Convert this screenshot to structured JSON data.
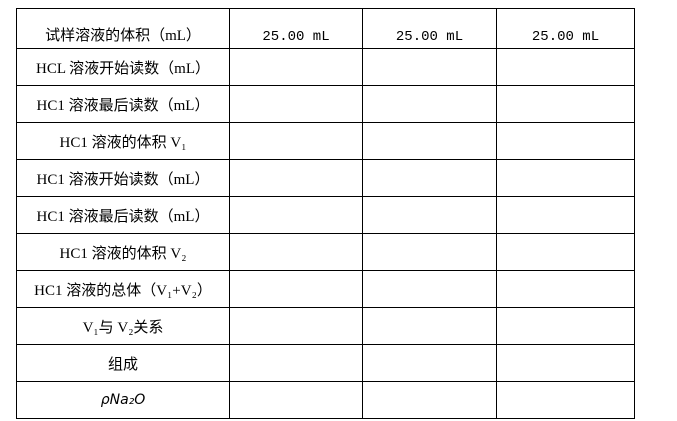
{
  "table": {
    "header": [
      "试样溶液的体积（mL）",
      "25.00 mL",
      "25.00 mL",
      "25.00 mL"
    ],
    "rows": [
      "HCL 溶液开始读数（mL）",
      "HC1 溶液最后读数（mL）",
      "HC1 溶液的体积 V₁",
      "HC1 溶液开始读数（mL）",
      "HC1 溶液最后读数（mL）",
      "HC1 溶液的体积 V₂",
      "HC1 溶液的总体（V₁+V₂）",
      "V₁与 V₂关系",
      "组成",
      "ρNa₂O"
    ]
  }
}
